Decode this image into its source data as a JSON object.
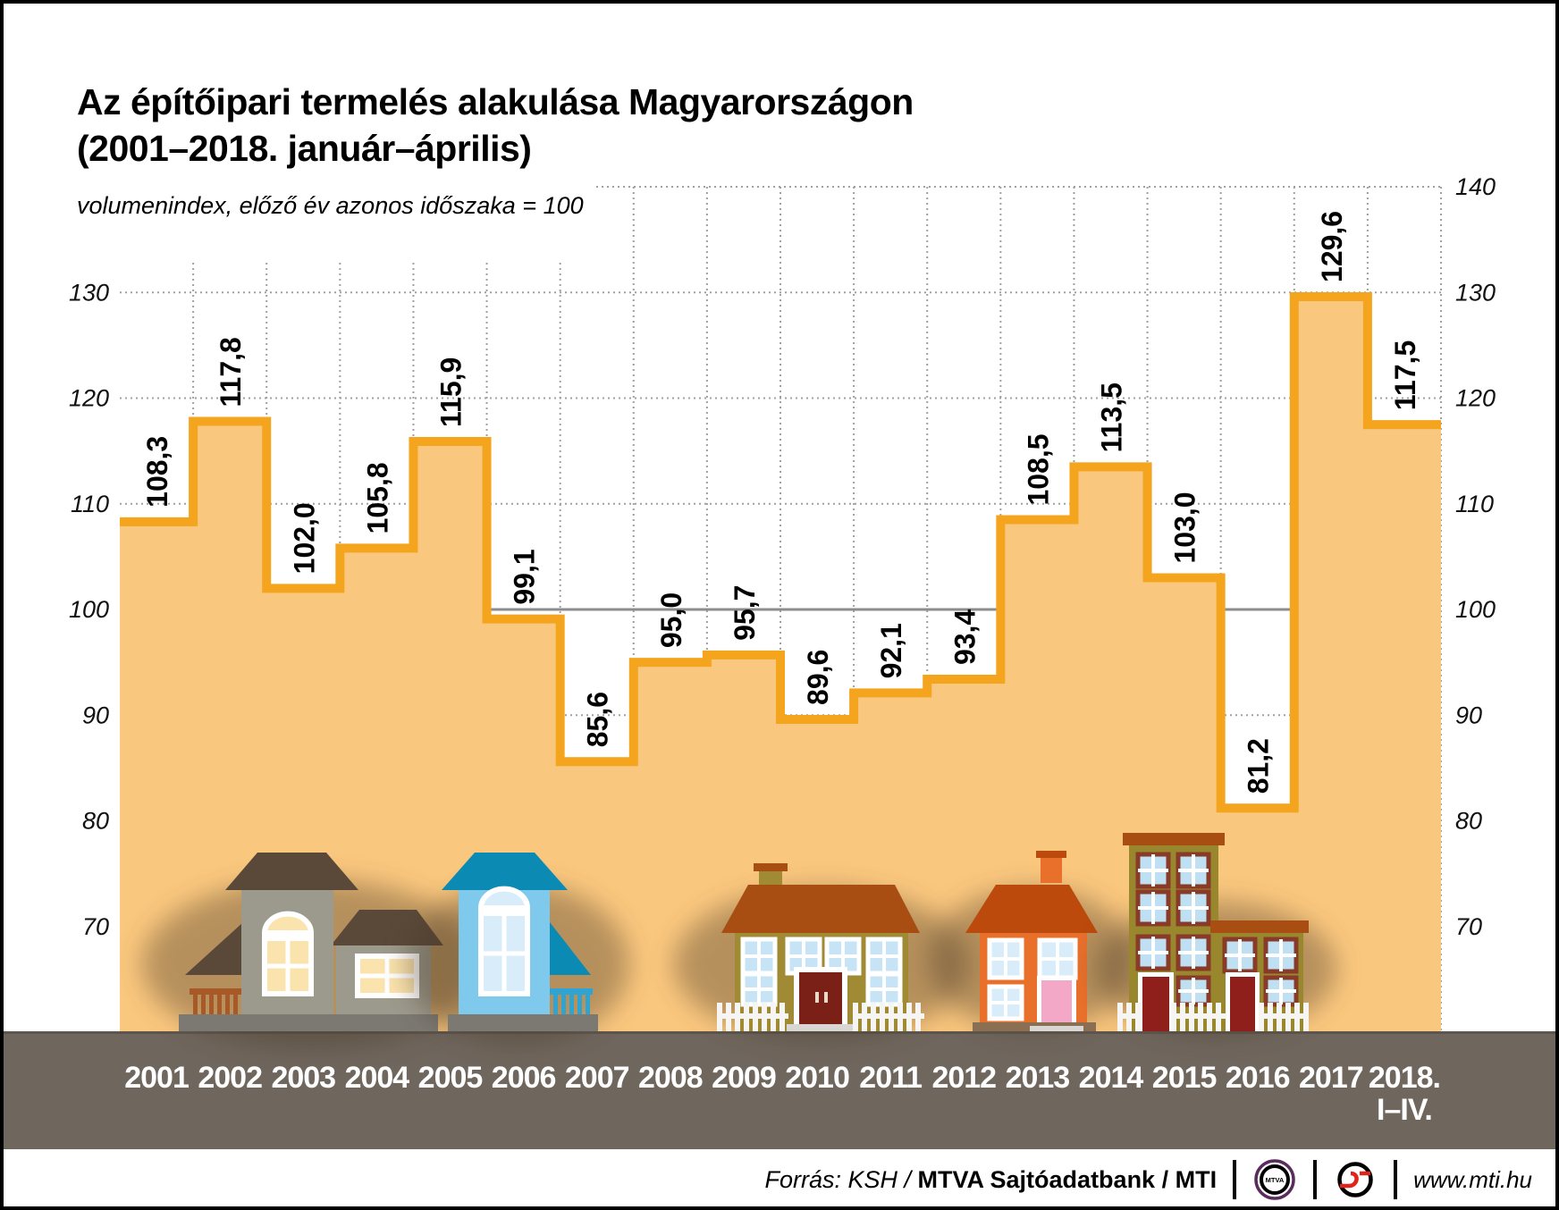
{
  "page": {
    "title_line1": "Az építőipari termelés alakulása Magyarországon",
    "title_line2": "(2001–2018. január–április)",
    "subtitle": "volumenindex, előző év azonos időszaka = 100"
  },
  "chart_data": {
    "type": "area",
    "step": true,
    "title": "Az építőipari termelés alakulása Magyarországon (2001–2018. január–április)",
    "subtitle": "volumenindex, előző év azonos időszaka = 100",
    "categories": [
      "2001",
      "2002",
      "2003",
      "2004",
      "2005",
      "2006",
      "2007",
      "2008",
      "2009",
      "2010",
      "2011",
      "2012",
      "2013",
      "2014",
      "2015",
      "2016",
      "2017",
      "2018. I–IV."
    ],
    "values": [
      108.3,
      117.8,
      102.0,
      105.8,
      115.9,
      99.1,
      85.6,
      95.0,
      95.7,
      89.6,
      92.1,
      93.4,
      108.5,
      113.5,
      103.0,
      81.2,
      129.6,
      117.5
    ],
    "value_labels": [
      "108,3",
      "117,8",
      "102,0",
      "105,8",
      "115,9",
      "99,1",
      "85,6",
      "95,0",
      "95,7",
      "89,6",
      "92,1",
      "93,4",
      "108,5",
      "113,5",
      "103,0",
      "81,2",
      "129,6",
      "117,5"
    ],
    "baseline": 100,
    "ylim": [
      70,
      140
    ],
    "yticks": [
      70,
      80,
      90,
      100,
      110,
      120,
      130,
      140
    ],
    "left_axis_ticks": [
      70,
      80,
      90,
      100,
      110,
      120,
      130
    ],
    "right_axis_ticks": [
      70,
      80,
      90,
      100,
      110,
      120,
      130,
      140
    ],
    "grid": "dotted",
    "legend": "none",
    "colors": {
      "line": "#F4A41D",
      "fill": "#FAC77E",
      "baseline": "#8C8C8C",
      "grid": "#A0A0A0",
      "ground": "#6F665D",
      "ground_edge": "#5E564E",
      "year_text": "#FFFFFF",
      "label_text": "#000000"
    }
  },
  "footer": {
    "source_italic": "Forrás: KSH /",
    "source_bold": "MTVA Sajtóadatbank / MTI",
    "mtva_logo_label": "MTVA",
    "website": "www.mti.hu"
  }
}
